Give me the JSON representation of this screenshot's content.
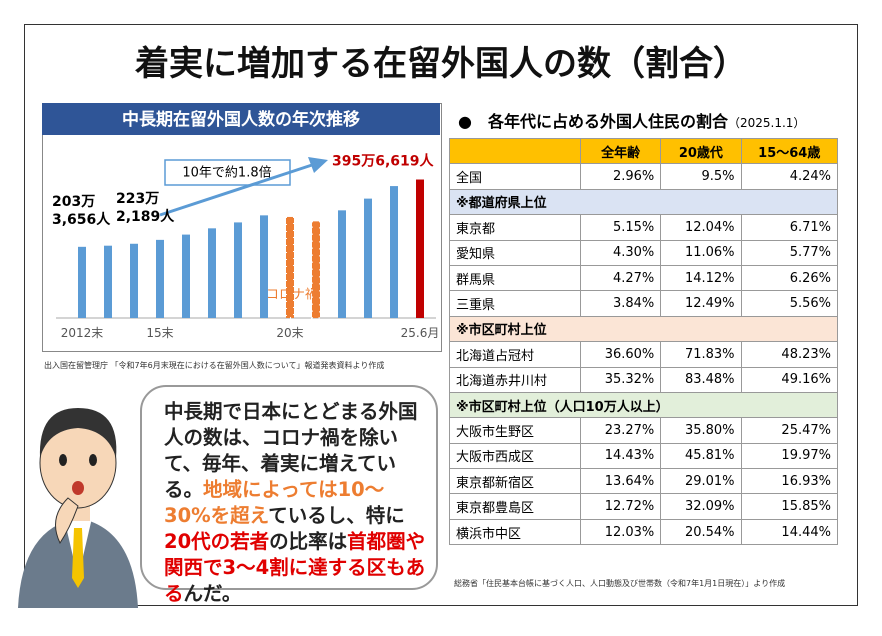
{
  "header": {
    "title": "着実に増加する在留外国人の数（割合）"
  },
  "chart_data": {
    "type": "bar",
    "title": "中長期在留外国人数の年次推移",
    "categories": [
      "2012末",
      null,
      null,
      "15末",
      null,
      null,
      null,
      null,
      "20末",
      null,
      null,
      null,
      null,
      "25.6月"
    ],
    "values": [
      203.3656,
      206.6,
      212.1,
      223.2189,
      238.3,
      256.2,
      273.1,
      293.3,
      288.7,
      276.1,
      307.6,
      341.1,
      376.9,
      395.6619
    ],
    "value_labels": [
      "203万\n3,656人",
      null,
      null,
      "223万\n2,189人",
      null,
      null,
      null,
      null,
      null,
      null,
      null,
      null,
      null,
      "395万6,619人"
    ],
    "colors": [
      "#5b9bd5",
      "#5b9bd5",
      "#5b9bd5",
      "#5b9bd5",
      "#5b9bd5",
      "#5b9bd5",
      "#5b9bd5",
      "#5b9bd5",
      "#ed7d31",
      "#ed7d31",
      "#5b9bd5",
      "#5b9bd5",
      "#5b9bd5",
      "#c00000"
    ],
    "ylim": [
      0,
      420
    ],
    "annotations": [
      "10年で約1.8倍",
      "コロナ禍"
    ]
  },
  "chart_source": "出入国在留管理庁 「令和7年6月末現在における在留外国人数について」報道発表資料より作成",
  "speech": [
    {
      "text": "中長期で日本にとどまる外国人の数は、コロナ禍を除いて、毎年、着実に増えている。",
      "color": "#222222"
    },
    {
      "text": "地域によっては10～30%を超え",
      "color": "#ed7d31"
    },
    {
      "text": "ているし、特に",
      "color": "#222222"
    },
    {
      "text": "20代の若者",
      "color": "#e00000"
    },
    {
      "text": "の比率は",
      "color": "#222222"
    },
    {
      "text": "首都圏や関西で3～4割に達する区もある",
      "color": "#e00000"
    },
    {
      "text": "んだ。",
      "color": "#222222"
    }
  ],
  "table": {
    "title": "各年代に占める外国人住民の割合",
    "date": "（2025.1.1）",
    "header": [
      "全年齢",
      "20歳代",
      "15～64歳"
    ],
    "rows": [
      [
        "全国",
        "2.96%",
        "9.5%",
        "4.24%"
      ],
      [
        "※都道府県上位"
      ],
      [
        "東京都",
        "5.15%",
        "12.04%",
        "6.71%"
      ],
      [
        "愛知県",
        "4.30%",
        "11.06%",
        "5.77%"
      ],
      [
        "群馬県",
        "4.27%",
        "14.12%",
        "6.26%"
      ],
      [
        "三重県",
        "3.84%",
        "12.49%",
        "5.56%"
      ],
      [
        "※市区町村上位"
      ],
      [
        "北海道占冠村",
        "36.60%",
        "71.83%",
        "48.23%"
      ],
      [
        "北海道赤井川村",
        "35.32%",
        "83.48%",
        "49.16%"
      ],
      [
        "※市区町村上位（人口10万人以上）"
      ],
      [
        "大阪市生野区",
        "23.27%",
        "35.80%",
        "25.47%"
      ],
      [
        "大阪市西成区",
        "14.43%",
        "45.81%",
        "19.97%"
      ],
      [
        "東京都新宿区",
        "13.64%",
        "29.01%",
        "16.93%"
      ],
      [
        "東京都豊島区",
        "12.72%",
        "32.09%",
        "15.85%"
      ],
      [
        "横浜市中区",
        "12.03%",
        "20.54%",
        "14.44%"
      ]
    ],
    "source": "総務省「住民基本台帳に基づく人口、人口動態及び世帯数（令和7年1月1日現在）」より作成"
  }
}
